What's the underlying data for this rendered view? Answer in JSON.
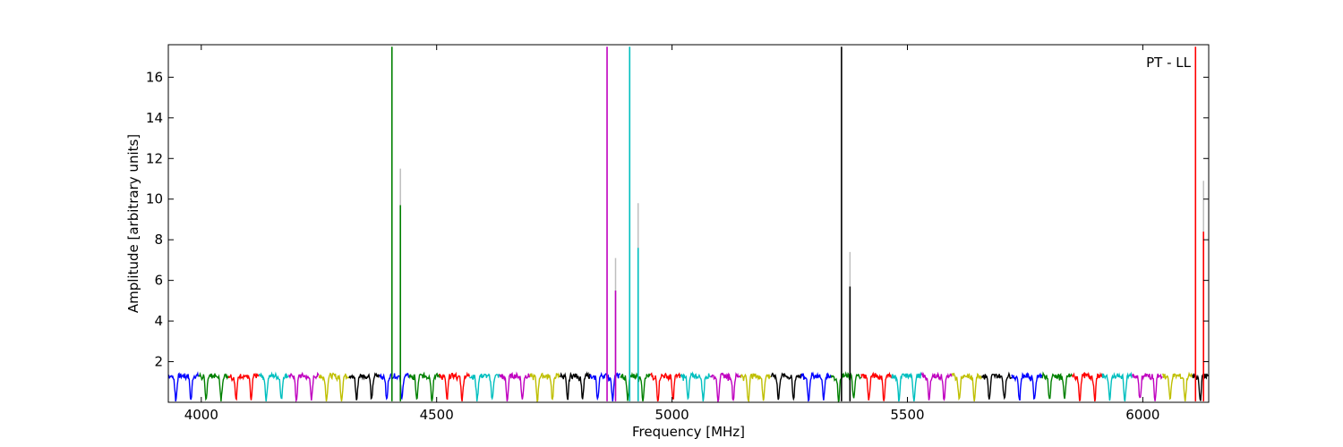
{
  "chart_data": {
    "type": "line",
    "title": "",
    "annotation": "PT - LL",
    "xlabel": "Frequency [MHz]",
    "ylabel": "Amplitude [arbitrary units]",
    "xlim": [
      3930,
      6140
    ],
    "ylim": [
      0,
      17.6
    ],
    "xticks": [
      4000,
      4500,
      5000,
      5500,
      6000
    ],
    "yticks": [
      2,
      4,
      6,
      8,
      10,
      12,
      14,
      16
    ],
    "grid": false,
    "legend": "none",
    "baseline": {
      "low": 0.2,
      "high": 1.4,
      "ripple_period_mhz": 32,
      "segment_width_mhz": 64
    },
    "series_colors": [
      "#0000ff",
      "#008000",
      "#ff0000",
      "#00bfbf",
      "#bf00bf",
      "#bfbf00",
      "#000000"
    ],
    "secondary_color": "#bfbfbf",
    "spikes": [
      {
        "x": 4405,
        "y": 17.5,
        "color": "#008000"
      },
      {
        "x": 4423,
        "y": 9.7,
        "color": "#008000",
        "gray_y": 11.5
      },
      {
        "x": 4862,
        "y": 17.5,
        "color": "#bf00bf"
      },
      {
        "x": 4880,
        "y": 5.5,
        "color": "#bf00bf",
        "gray_y": 7.1
      },
      {
        "x": 4910,
        "y": 17.5,
        "color": "#00bfbf"
      },
      {
        "x": 4928,
        "y": 7.6,
        "color": "#00bfbf",
        "gray_y": 9.8
      },
      {
        "x": 5360,
        "y": 17.5,
        "color": "#000000"
      },
      {
        "x": 5378,
        "y": 5.7,
        "color": "#000000",
        "gray_y": 7.4
      },
      {
        "x": 6112,
        "y": 17.5,
        "color": "#ff0000"
      },
      {
        "x": 6129,
        "y": 8.4,
        "color": "#ff0000",
        "gray_y": 10.9
      }
    ]
  }
}
